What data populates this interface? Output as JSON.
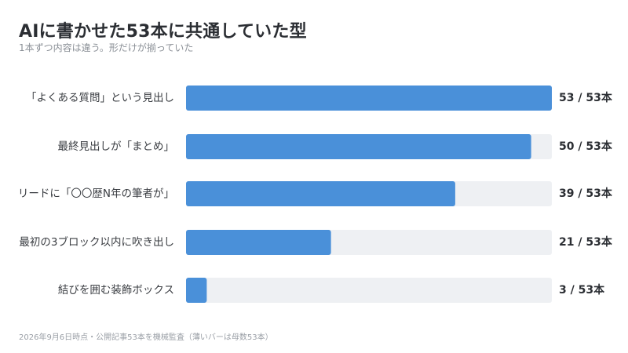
{
  "header": {
    "title": "AIに書かせた53本に共通していた型",
    "subtitle": "1本ずつ内容は違う。形だけが揃っていた"
  },
  "footer": {
    "note": "2026年9月6日時点・公開記事53本を機械監査（薄いバーは母数53本）"
  },
  "colors": {
    "bar": "#4a90d9",
    "track": "#eef0f3"
  },
  "chart_data": {
    "type": "bar",
    "orientation": "horizontal",
    "total": 53,
    "categories": [
      "「よくある質問」という見出し",
      "最終見出しが「まとめ」",
      "リードに「〇〇歴N年の筆者が」",
      "最初の3ブロック以内に吹き出し",
      "結びを囲む装飾ボックス"
    ],
    "values": [
      53,
      50,
      39,
      21,
      3
    ],
    "value_labels": [
      "53 / 53本",
      "50 / 53本",
      "39 / 53本",
      "21 / 53本",
      "3 / 53本"
    ],
    "xlim": [
      0,
      53
    ],
    "grid": false
  }
}
